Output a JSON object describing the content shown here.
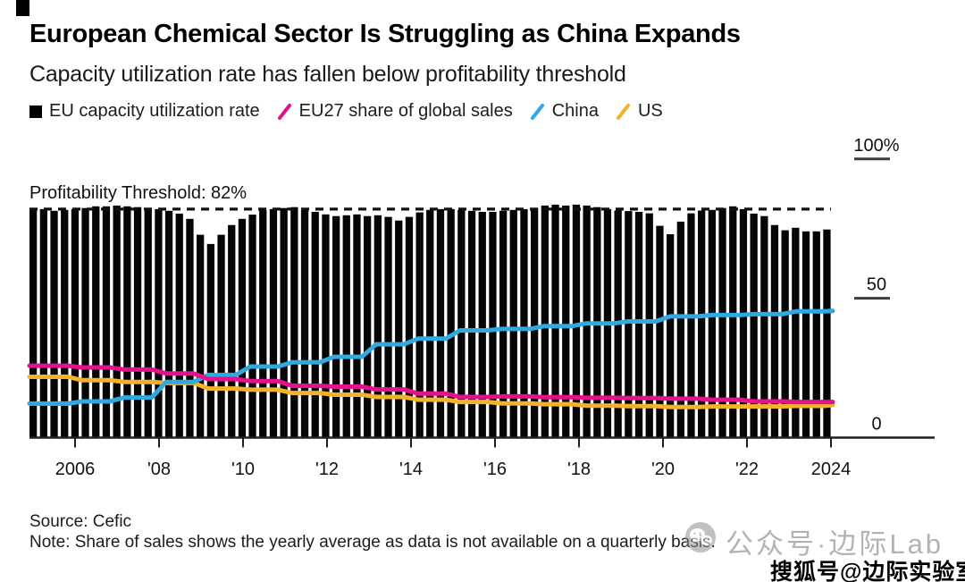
{
  "header": {
    "title": "European Chemical Sector Is Struggling as China Expands",
    "subtitle": "Capacity utilization rate has fallen below profitability threshold"
  },
  "legend": {
    "items": [
      {
        "label": "EU capacity utilization rate",
        "marker": "square",
        "color": "#000000"
      },
      {
        "label": "EU27 share of global sales",
        "marker": "slash",
        "color": "#E4108C"
      },
      {
        "label": "China",
        "marker": "slash",
        "color": "#30A9E0"
      },
      {
        "label": "US",
        "marker": "slash",
        "color": "#F3B229"
      }
    ]
  },
  "chart_data": {
    "type": "bar",
    "title": "European Chemical Sector Is Struggling as China Expands",
    "ylabel": "",
    "xlabel": "",
    "ylim": [
      0,
      100
    ],
    "grid": false,
    "threshold": {
      "label": "Profitability Threshold: 82%",
      "value": 82
    },
    "y_ticks": [
      {
        "label": "100%",
        "value": 100
      },
      {
        "label": "50",
        "value": 50
      },
      {
        "label": "0",
        "value": 0
      }
    ],
    "x_ticks": [
      {
        "label": "2006",
        "year": 2006
      },
      {
        "label": "'08",
        "year": 2008
      },
      {
        "label": "'10",
        "year": 2010
      },
      {
        "label": "'12",
        "year": 2012
      },
      {
        "label": "'14",
        "year": 2014
      },
      {
        "label": "'16",
        "year": 2016
      },
      {
        "label": "'18",
        "year": 2018
      },
      {
        "label": "'20",
        "year": 2020
      },
      {
        "label": "'22",
        "year": 2022
      },
      {
        "label": "2024",
        "year": 2024
      }
    ],
    "bars": {
      "name": "EU capacity utilization rate",
      "color": "#050505",
      "unit": "%",
      "frequency": "quarterly",
      "start": "2005 Q1",
      "end": "2024 Q1",
      "values": [
        81.7,
        82.0,
        81.4,
        81.7,
        82.0,
        82.4,
        83.0,
        83.0,
        83.3,
        83.0,
        82.7,
        82.4,
        82.0,
        81.4,
        80.4,
        78.5,
        72.8,
        69.5,
        72.8,
        76.3,
        78.5,
        80.0,
        81.7,
        82.0,
        82.4,
        82.7,
        81.7,
        81.0,
        80.1,
        79.5,
        79.8,
        80.1,
        79.5,
        79.8,
        79.2,
        77.9,
        79.2,
        80.8,
        81.7,
        82.0,
        82.0,
        81.7,
        81.4,
        81.0,
        81.0,
        81.4,
        81.7,
        82.0,
        82.4,
        83.3,
        83.6,
        83.3,
        83.6,
        83.3,
        82.7,
        82.0,
        81.5,
        81.3,
        81.0,
        80.5,
        76.0,
        73.0,
        77.5,
        80.5,
        81.5,
        81.7,
        82.4,
        83.0,
        82.0,
        80.4,
        79.5,
        76.3,
        74.4,
        75.3,
        74.0,
        74.0,
        74.7
      ]
    },
    "lines": [
      {
        "name": "US",
        "color": "#F3B229",
        "unit": "%",
        "frequency": "yearly",
        "years": [
          2005,
          2006,
          2007,
          2008,
          2009,
          2010,
          2011,
          2012,
          2013,
          2014,
          2015,
          2016,
          2017,
          2018,
          2019,
          2020,
          2021,
          2022,
          2023,
          2024
        ],
        "values": [
          21.8,
          20.6,
          20.0,
          19.6,
          17.6,
          17.2,
          16.0,
          15.4,
          14.6,
          13.6,
          12.8,
          12.3,
          12.0,
          11.5,
          11.3,
          11.0,
          11.2,
          11.2,
          11.4,
          11.7
        ]
      },
      {
        "name": "China",
        "color": "#30A9E0",
        "unit": "%",
        "frequency": "yearly",
        "years": [
          2005,
          2006,
          2007,
          2008,
          2009,
          2010,
          2011,
          2012,
          2013,
          2014,
          2015,
          2016,
          2017,
          2018,
          2019,
          2020,
          2021,
          2022,
          2023,
          2024
        ],
        "values": [
          12.2,
          13.0,
          14.4,
          20.0,
          22.5,
          25.5,
          27.0,
          29.0,
          33.5,
          35.5,
          38.5,
          39.0,
          40.0,
          41.0,
          41.7,
          43.5,
          44.0,
          44.3,
          45.3,
          45.5
        ]
      },
      {
        "name": "EU27 share of global sales",
        "color": "#E4108C",
        "unit": "%",
        "frequency": "yearly",
        "years": [
          2005,
          2006,
          2007,
          2008,
          2009,
          2010,
          2011,
          2012,
          2013,
          2014,
          2015,
          2016,
          2017,
          2018,
          2019,
          2020,
          2021,
          2022,
          2023,
          2024
        ],
        "values": [
          25.8,
          25.2,
          24.4,
          23.0,
          21.0,
          20.3,
          18.6,
          18.3,
          17.3,
          15.8,
          14.6,
          14.8,
          14.5,
          14.3,
          14.2,
          14.0,
          13.6,
          13.0,
          12.8,
          12.8
        ]
      }
    ]
  },
  "footer": {
    "source": "Source: Cefic",
    "note": "Note: Share of sales shows the yearly average as data is not available on a quarterly basis."
  },
  "watermark": {
    "wechat_icon": "wechat-chat-icon",
    "wechat_text": "公众号·边际Lab",
    "sohu_text": "搜狐号@边际实验室"
  }
}
